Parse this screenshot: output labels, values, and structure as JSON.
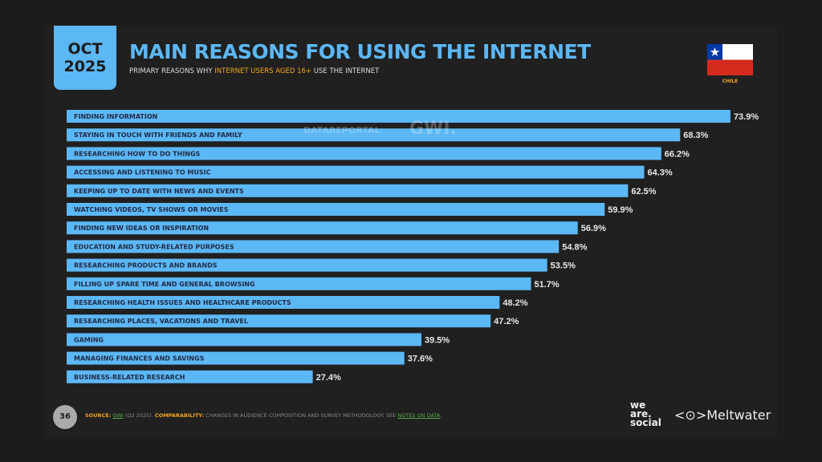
{
  "header": {
    "date_month": "OCT",
    "date_year": "2025",
    "title": "MAIN REASONS FOR USING THE INTERNET",
    "subtitle_pre": "PRIMARY REASONS WHY ",
    "subtitle_highlight": "INTERNET USERS AGED 16+",
    "subtitle_post": " USE THE INTERNET",
    "country": "CHILE"
  },
  "watermark": {
    "datareportal": "DATAREPORTAL",
    "gwi": "GWI."
  },
  "chart_data": {
    "type": "bar",
    "orientation": "horizontal",
    "categories": [
      "FINDING INFORMATION",
      "STAYING IN TOUCH WITH FRIENDS AND FAMILY",
      "RESEARCHING HOW TO DO THINGS",
      "ACCESSING AND LISTENING TO MUSIC",
      "KEEPING UP TO DATE WITH NEWS AND EVENTS",
      "WATCHING VIDEOS, TV SHOWS OR MOVIES",
      "FINDING NEW IDEAS OR INSPIRATION",
      "EDUCATION AND STUDY-RELATED PURPOSES",
      "RESEARCHING PRODUCTS AND BRANDS",
      "FILLING UP SPARE TIME AND GENERAL BROWSING",
      "RESEARCHING HEALTH ISSUES AND HEALTHCARE PRODUCTS",
      "RESEARCHING PLACES, VACATIONS AND TRAVEL",
      "GAMING",
      "MANAGING FINANCES AND SAVINGS",
      "BUSINESS-RELATED RESEARCH"
    ],
    "values": [
      73.9,
      68.3,
      66.2,
      64.3,
      62.5,
      59.9,
      56.9,
      54.8,
      53.5,
      51.7,
      48.2,
      47.2,
      39.5,
      37.6,
      27.4
    ],
    "value_labels": [
      "73.9%",
      "68.3%",
      "66.2%",
      "64.3%",
      "62.5%",
      "59.9%",
      "56.9%",
      "54.8%",
      "53.5%",
      "51.7%",
      "48.2%",
      "47.2%",
      "39.5%",
      "37.6%",
      "27.4%"
    ],
    "unit": "%",
    "bar_color": "#5cb7f5",
    "grid": false
  },
  "footer": {
    "page": "36",
    "source_label": "SOURCE:",
    "source": "GWI",
    "source_rest": " (Q2 2025). ",
    "comp_label": "COMPARABILITY:",
    "comp_text": " CHANGES IN AUDIENCE COMPOSITION AND SURVEY METHODOLOGY. SEE ",
    "notes": "NOTES ON DATA",
    "end": "."
  },
  "logos": {
    "we": "we",
    "are": "are.",
    "social": "social",
    "meltwater": "Meltwater"
  },
  "colors": {
    "accent": "#5cb7f5",
    "highlight": "#f5a623",
    "link": "#5aa84a"
  }
}
